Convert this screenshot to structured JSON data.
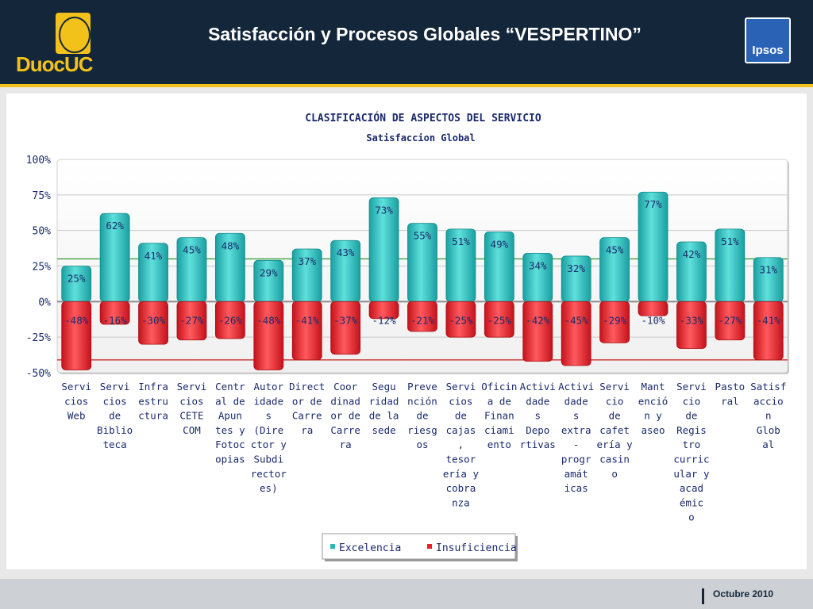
{
  "header": {
    "title": "Satisfacción y Procesos Globales “VESPERTINO”",
    "brand": "DuocUC",
    "partner_logo": "Ipsos"
  },
  "footer": {
    "date": "Octubre 2010"
  },
  "colors": {
    "header_bg": "#13263a",
    "accent": "#f2c21b",
    "positive": "#2bb8b8",
    "negative": "#e8202a"
  },
  "chart_data": {
    "type": "bar",
    "title": "CLASIFICACIÓN DE ASPECTOS DEL SERVICIO",
    "subtitle": "Satisfaccion Global",
    "ylim": [
      -50,
      100
    ],
    "yticks": [
      "100%",
      "75%",
      "50%",
      "25%",
      "0%",
      "-25%",
      "-50%"
    ],
    "reference_lines": [
      30,
      -41
    ],
    "legend_position": "bottom",
    "categories": [
      [
        "Servi",
        "cios",
        "Web"
      ],
      [
        "Servi",
        "cios",
        "de",
        "Biblio",
        "teca"
      ],
      [
        "Infra",
        "estru",
        "ctura"
      ],
      [
        "Servi",
        "cios",
        "CETE",
        "COM"
      ],
      [
        "Centr",
        "al de",
        "Apun",
        "tes y",
        "Fotoc",
        "opias"
      ],
      [
        "Autor",
        "idade",
        "s",
        "(Dire",
        "ctor y",
        "Subdi",
        "rector",
        "es)"
      ],
      [
        "Direct",
        "or de",
        "Carre",
        "ra"
      ],
      [
        "Coor",
        "dinad",
        "or de",
        "Carre",
        "ra"
      ],
      [
        "Segu",
        "ridad",
        "de la",
        "sede"
      ],
      [
        "Preve",
        "nción",
        "de",
        "riesg",
        "os"
      ],
      [
        "Servi",
        "cios",
        "de",
        "cajas",
        ",",
        "tesor",
        "ería y",
        "cobra",
        "nza"
      ],
      [
        "Oficin",
        "a de",
        "Finan",
        "ciami",
        "ento"
      ],
      [
        "Activi",
        "dade",
        "s",
        "Depo",
        "rtivas"
      ],
      [
        "Activi",
        "dade",
        "s",
        "extra",
        "-",
        "progr",
        "amát",
        "icas"
      ],
      [
        "Servi",
        "cio",
        "de",
        "cafet",
        "ería y",
        "casin",
        "o"
      ],
      [
        "Mant",
        "enció",
        "n y",
        "aseo"
      ],
      [
        "Servi",
        "cio",
        "de",
        "Regis",
        "tro",
        "curric",
        "ular y",
        "acad",
        "émic",
        "o"
      ],
      [
        "Pasto",
        "ral"
      ],
      [
        "Satisf",
        "accio",
        "n",
        "Glob",
        "al"
      ]
    ],
    "series": [
      {
        "name": "Excelencia",
        "values": [
          25,
          62,
          41,
          45,
          48,
          29,
          37,
          43,
          73,
          55,
          51,
          49,
          34,
          32,
          45,
          77,
          42,
          51,
          31
        ],
        "labels": [
          "25%",
          "62%",
          "41%",
          "45%",
          "48%",
          "29%",
          "37%",
          "43%",
          "73%",
          "55%",
          "51%",
          "49%",
          "34%",
          "32%",
          "45%",
          "77%",
          "42%",
          "51%",
          "31%"
        ]
      },
      {
        "name": "Insuficiencia",
        "values": [
          -48,
          -16,
          -30,
          -27,
          -26,
          -48,
          -41,
          -37,
          -12,
          -21,
          -25,
          -25,
          -42,
          -45,
          -29,
          -10,
          -33,
          -27,
          -41
        ],
        "labels": [
          "-48%",
          "-16%",
          "-30%",
          "-27%",
          "-26%",
          "-48%",
          "-41%",
          "-37%",
          "-12%",
          "-21%",
          "-25%",
          "-25%",
          "-42%",
          "-45%",
          "-29%",
          "-10%",
          "-33%",
          "-27%",
          "-41%"
        ]
      }
    ]
  }
}
